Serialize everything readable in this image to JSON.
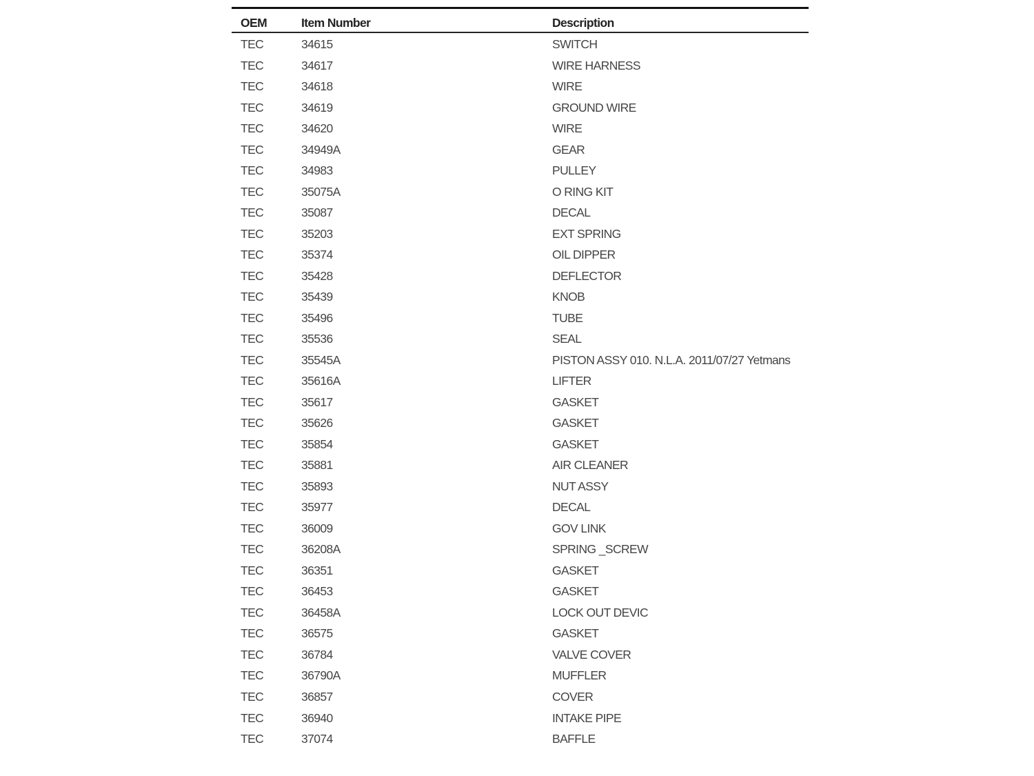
{
  "columns": [
    "OEM",
    "Item Number",
    "Description"
  ],
  "rows": [
    [
      "TEC",
      "34615",
      "SWITCH"
    ],
    [
      "TEC",
      "34617",
      "WIRE HARNESS"
    ],
    [
      "TEC",
      "34618",
      "WIRE"
    ],
    [
      "TEC",
      "34619",
      "GROUND WIRE"
    ],
    [
      "TEC",
      "34620",
      "WIRE"
    ],
    [
      "TEC",
      "34949A",
      "GEAR"
    ],
    [
      "TEC",
      "34983",
      "PULLEY"
    ],
    [
      "TEC",
      "35075A",
      "O RING KIT"
    ],
    [
      "TEC",
      "35087",
      "DECAL"
    ],
    [
      "TEC",
      "35203",
      "EXT SPRING"
    ],
    [
      "TEC",
      "35374",
      "OIL DIPPER"
    ],
    [
      "TEC",
      "35428",
      "DEFLECTOR"
    ],
    [
      "TEC",
      "35439",
      "KNOB"
    ],
    [
      "TEC",
      "35496",
      "TUBE"
    ],
    [
      "TEC",
      "35536",
      "SEAL"
    ],
    [
      "TEC",
      "35545A",
      "PISTON ASSY 010.  N.L.A. 2011/07/27 Yetmans"
    ],
    [
      "TEC",
      "35616A",
      "LIFTER"
    ],
    [
      "TEC",
      "35617",
      "GASKET"
    ],
    [
      "TEC",
      "35626",
      "GASKET"
    ],
    [
      "TEC",
      "35854",
      "GASKET"
    ],
    [
      "TEC",
      "35881",
      "AIR CLEANER"
    ],
    [
      "TEC",
      "35893",
      "NUT ASSY"
    ],
    [
      "TEC",
      "35977",
      "DECAL"
    ],
    [
      "TEC",
      "36009",
      "GOV LINK"
    ],
    [
      "TEC",
      "36208A",
      "SPRING _SCREW"
    ],
    [
      "TEC",
      "36351",
      "GASKET"
    ],
    [
      "TEC",
      "36453",
      "GASKET"
    ],
    [
      "TEC",
      "36458A",
      "LOCK OUT DEVIC"
    ],
    [
      "TEC",
      "36575",
      "GASKET"
    ],
    [
      "TEC",
      "36784",
      "VALVE COVER"
    ],
    [
      "TEC",
      "36790A",
      "MUFFLER"
    ],
    [
      "TEC",
      "36857",
      "COVER"
    ],
    [
      "TEC",
      "36940",
      "INTAKE PIPE"
    ],
    [
      "TEC",
      "37074",
      "BAFFLE"
    ]
  ]
}
